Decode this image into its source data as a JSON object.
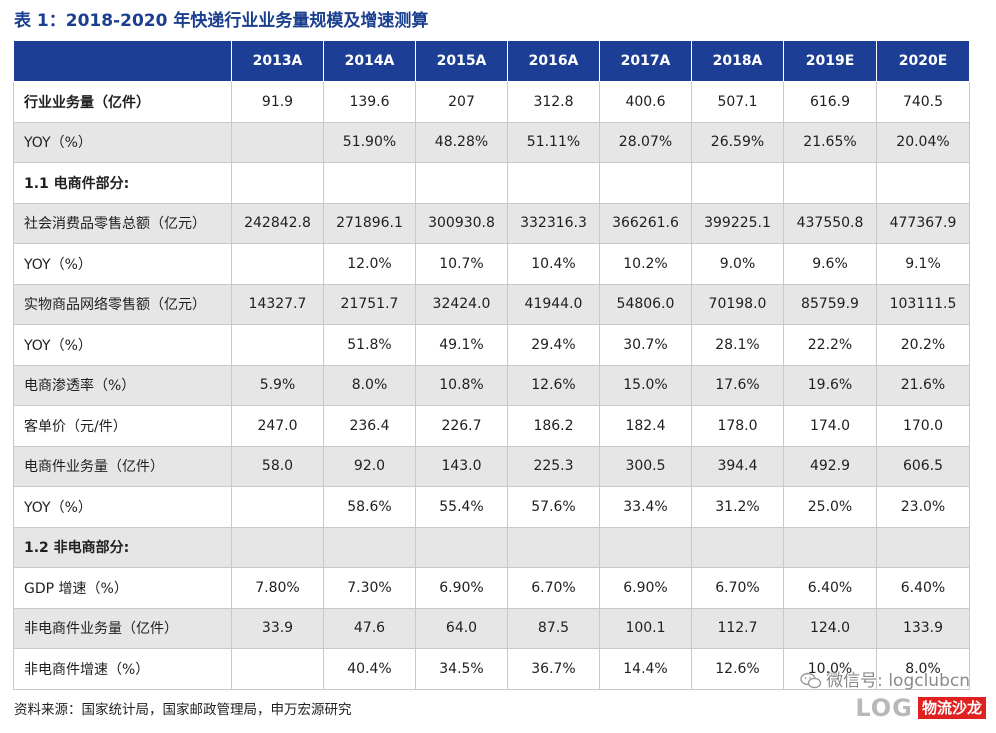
{
  "title": "表 1：2018-2020 年快递行业业务量规模及增速测算",
  "columns": [
    "",
    "2013A",
    "2014A",
    "2015A",
    "2016A",
    "2017A",
    "2018A",
    "2019E",
    "2020E"
  ],
  "rows": [
    {
      "label": "行业业务量（亿件）",
      "values": [
        "91.9",
        "139.6",
        "207",
        "312.8",
        "400.6",
        "507.1",
        "616.9",
        "740.5"
      ]
    },
    {
      "label": "YOY（%）",
      "values": [
        "",
        "51.90%",
        "48.28%",
        "51.11%",
        "28.07%",
        "26.59%",
        "21.65%",
        "20.04%"
      ]
    },
    {
      "label": "1.1 电商件部分:",
      "values": [
        "",
        "",
        "",
        "",
        "",
        "",
        "",
        ""
      ]
    },
    {
      "label": "社会消费品零售总额（亿元）",
      "values": [
        "242842.8",
        "271896.1",
        "300930.8",
        "332316.3",
        "366261.6",
        "399225.1",
        "437550.8",
        "477367.9"
      ]
    },
    {
      "label": "YOY（%）",
      "values": [
        "",
        "12.0%",
        "10.7%",
        "10.4%",
        "10.2%",
        "9.0%",
        "9.6%",
        "9.1%"
      ]
    },
    {
      "label": "实物商品网络零售额（亿元）",
      "values": [
        "14327.7",
        "21751.7",
        "32424.0",
        "41944.0",
        "54806.0",
        "70198.0",
        "85759.9",
        "103111.5"
      ]
    },
    {
      "label": "YOY（%）",
      "values": [
        "",
        "51.8%",
        "49.1%",
        "29.4%",
        "30.7%",
        "28.1%",
        "22.2%",
        "20.2%"
      ]
    },
    {
      "label": "电商渗透率（%）",
      "values": [
        "5.9%",
        "8.0%",
        "10.8%",
        "12.6%",
        "15.0%",
        "17.6%",
        "19.6%",
        "21.6%"
      ]
    },
    {
      "label": "客单价（元/件）",
      "values": [
        "247.0",
        "236.4",
        "226.7",
        "186.2",
        "182.4",
        "178.0",
        "174.0",
        "170.0"
      ]
    },
    {
      "label": "电商件业务量（亿件）",
      "values": [
        "58.0",
        "92.0",
        "143.0",
        "225.3",
        "300.5",
        "394.4",
        "492.9",
        "606.5"
      ]
    },
    {
      "label": "YOY（%）",
      "values": [
        "",
        "58.6%",
        "55.4%",
        "57.6%",
        "33.4%",
        "31.2%",
        "25.0%",
        "23.0%"
      ]
    },
    {
      "label": "1.2 非电商部分:",
      "values": [
        "",
        "",
        "",
        "",
        "",
        "",
        "",
        ""
      ]
    },
    {
      "label": "GDP 增速（%）",
      "values": [
        "7.80%",
        "7.30%",
        "6.90%",
        "6.70%",
        "6.90%",
        "6.70%",
        "6.40%",
        "6.40%"
      ]
    },
    {
      "label": "非电商件业务量（亿件）",
      "values": [
        "33.9",
        "47.6",
        "64.0",
        "87.5",
        "100.1",
        "112.7",
        "124.0",
        "133.9"
      ]
    },
    {
      "label": "非电商件增速（%）",
      "values": [
        "",
        "40.4%",
        "34.5%",
        "36.7%",
        "14.4%",
        "12.6%",
        "10.0%",
        "8.0%"
      ]
    }
  ],
  "source": "资料来源：国家统计局，国家邮政管理局，申万宏源研究",
  "watermark": "微信号: logclubcn",
  "logo": {
    "text": "LOG",
    "cn": "物流沙龙"
  }
}
